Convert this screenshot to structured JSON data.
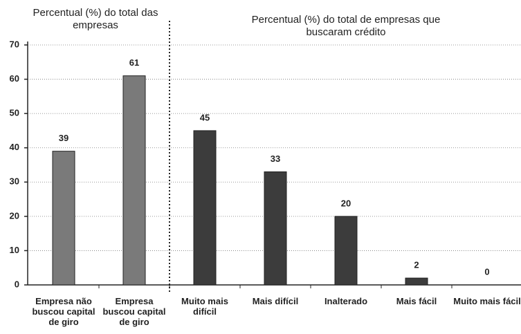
{
  "chart_data": {
    "type": "bar",
    "annotations": [
      "Percentual (%) do total das empresas",
      "Percentual (%) do total de empresas que buscaram crédito"
    ],
    "categories": [
      "Empresa não buscou capital de giro",
      "Empresa buscou capital de giro",
      "Muito mais difícil",
      "Mais difícil",
      "Inalterado",
      "Mais fácil",
      "Muito mais fácil"
    ],
    "values": [
      39,
      61,
      45,
      33,
      20,
      2,
      0
    ],
    "colors": [
      "#7a7a7a",
      "#7a7a7a",
      "#3c3c3c",
      "#3c3c3c",
      "#3c3c3c",
      "#3c3c3c",
      "#3c3c3c"
    ],
    "ylim": [
      0,
      70
    ],
    "yticks": [
      0,
      10,
      20,
      30,
      40,
      50,
      60,
      70
    ],
    "grid": true
  }
}
